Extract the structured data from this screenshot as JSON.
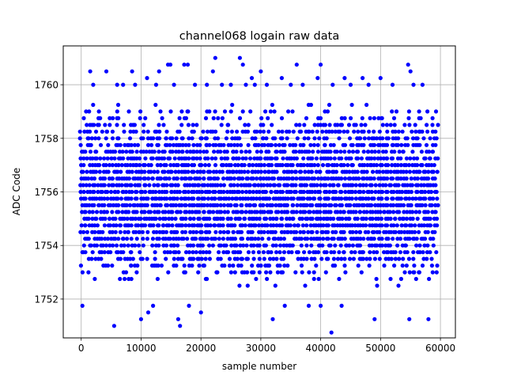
{
  "chart_data": {
    "type": "scatter",
    "title": "channel068 logain raw data",
    "xlabel": "sample number",
    "ylabel": "ADC Code",
    "xlim": [
      -3000,
      62500
    ],
    "ylim": [
      1750.55,
      1761.45
    ],
    "x_ticks": [
      0,
      10000,
      20000,
      30000,
      40000,
      50000,
      60000
    ],
    "x_tick_labels": [
      "0",
      "10000",
      "20000",
      "30000",
      "40000",
      "50000",
      "60000"
    ],
    "y_ticks": [
      1752,
      1754,
      1756,
      1758,
      1760
    ],
    "y_tick_labels": [
      "1752",
      "1754",
      "1756",
      "1758",
      "1760"
    ],
    "grid": true,
    "marker_color": "#0000ff",
    "series": [
      {
        "x_range": [
          0,
          59400
        ],
        "level_step": 0.25,
        "dense_band": [
          1752.5,
          1759.25
        ],
        "sparse_points": [
          [
            200,
            1751.75
          ],
          [
            5500,
            1751.0
          ],
          [
            10000,
            1751.25
          ],
          [
            11200,
            1751.5
          ],
          [
            12000,
            1751.75
          ],
          [
            16200,
            1751.25
          ],
          [
            16500,
            1751.0
          ],
          [
            18000,
            1751.75
          ],
          [
            20000,
            1751.5
          ],
          [
            32000,
            1751.25
          ],
          [
            34000,
            1751.75
          ],
          [
            38000,
            1751.75
          ],
          [
            40000,
            1751.75
          ],
          [
            41800,
            1750.75
          ],
          [
            43500,
            1751.75
          ],
          [
            49000,
            1751.25
          ],
          [
            54800,
            1751.25
          ],
          [
            58000,
            1751.25
          ],
          [
            1500,
            1760.5
          ],
          [
            4200,
            1760.5
          ],
          [
            8500,
            1760.5
          ],
          [
            11000,
            1760.25
          ],
          [
            13000,
            1760.5
          ],
          [
            14500,
            1760.75
          ],
          [
            14900,
            1760.75
          ],
          [
            17200,
            1760.75
          ],
          [
            17800,
            1760.75
          ],
          [
            22000,
            1760.5
          ],
          [
            22400,
            1761.0
          ],
          [
            26500,
            1761.0
          ],
          [
            27000,
            1760.75
          ],
          [
            28500,
            1760.25
          ],
          [
            30000,
            1760.5
          ],
          [
            33500,
            1760.25
          ],
          [
            36000,
            1760.75
          ],
          [
            39500,
            1760.25
          ],
          [
            40000,
            1760.75
          ],
          [
            44000,
            1760.25
          ],
          [
            47000,
            1760.25
          ],
          [
            50000,
            1760.25
          ],
          [
            54600,
            1760.75
          ],
          [
            55000,
            1760.5
          ],
          [
            2000,
            1760.0
          ],
          [
            6000,
            1760.0
          ],
          [
            7000,
            1760.0
          ],
          [
            9000,
            1760.0
          ],
          [
            12500,
            1760.0
          ],
          [
            15500,
            1760.0
          ],
          [
            19000,
            1760.0
          ],
          [
            21000,
            1760.0
          ],
          [
            23500,
            1760.0
          ],
          [
            25000,
            1760.0
          ],
          [
            27500,
            1760.0
          ],
          [
            29000,
            1760.0
          ],
          [
            31000,
            1760.0
          ],
          [
            35000,
            1760.0
          ],
          [
            37000,
            1760.0
          ],
          [
            42000,
            1760.0
          ],
          [
            45000,
            1760.0
          ],
          [
            48000,
            1760.0
          ],
          [
            52000,
            1760.0
          ],
          [
            55500,
            1760.0
          ],
          [
            57000,
            1760.0
          ]
        ]
      }
    ]
  }
}
